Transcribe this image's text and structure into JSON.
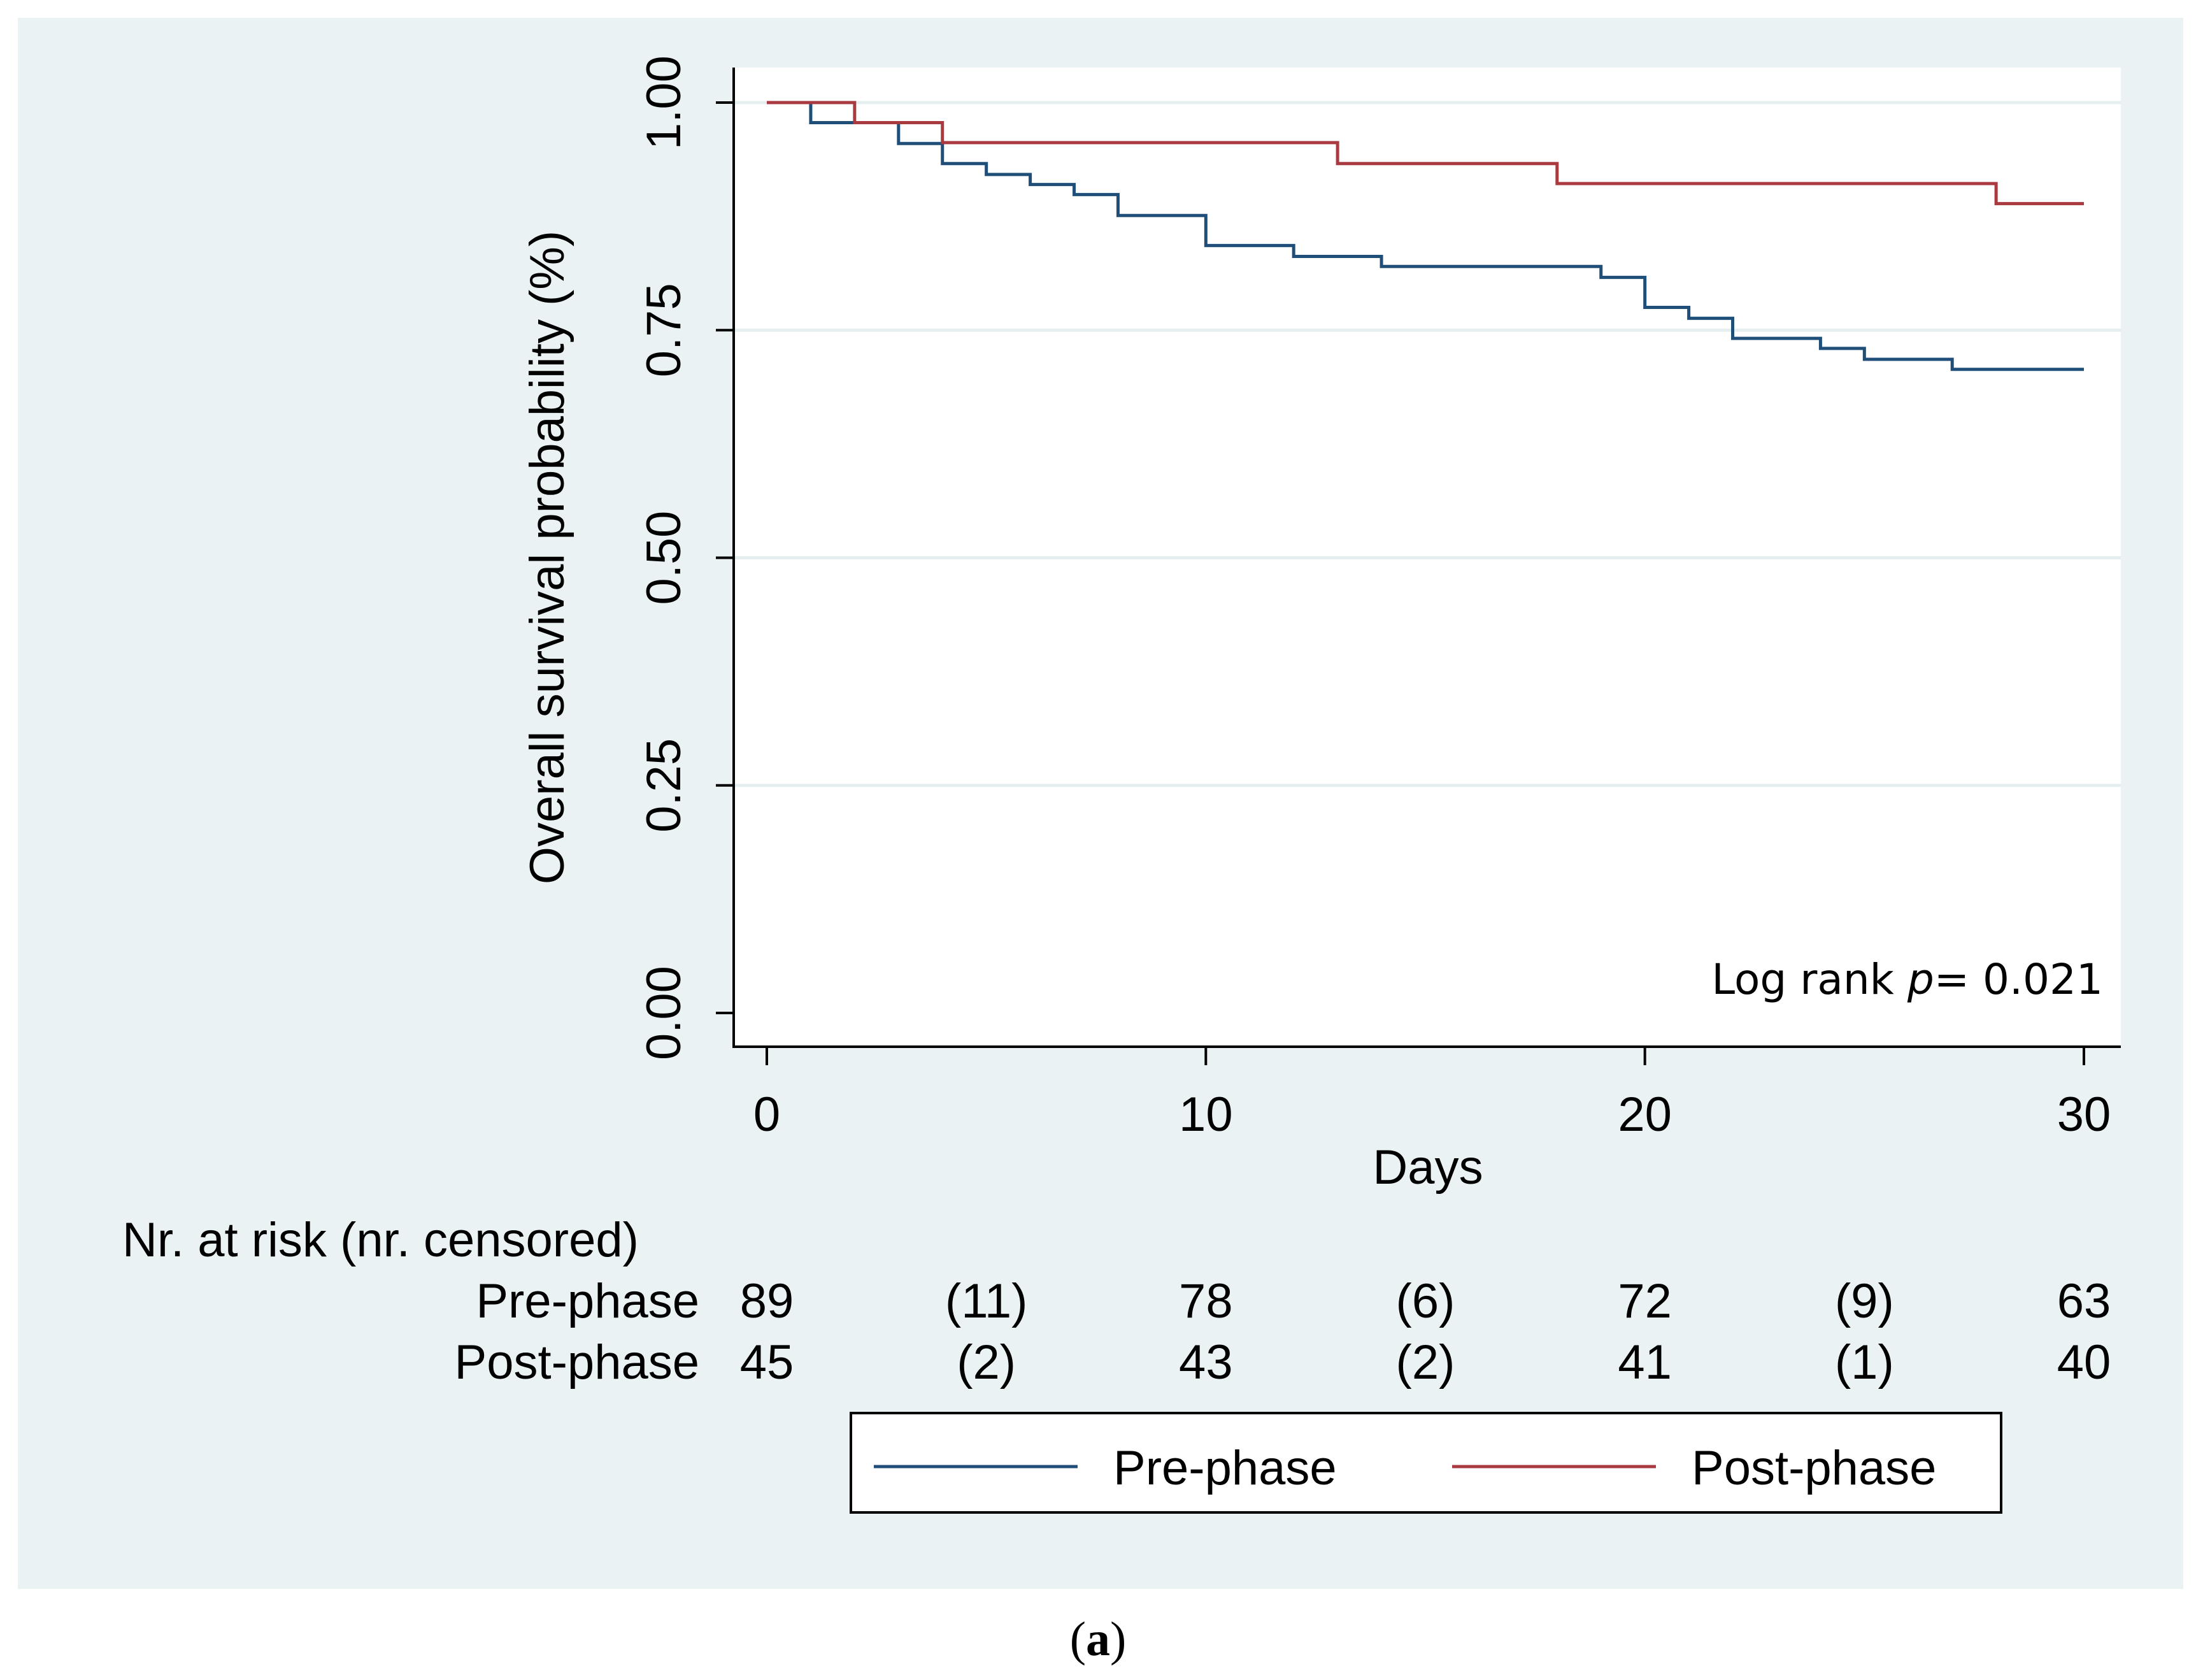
{
  "chart_data": {
    "type": "line",
    "step": true,
    "title": "",
    "xlabel": "Days",
    "ylabel": "Overall survival probability (%)",
    "xlim": [
      0,
      30
    ],
    "ylim": [
      0,
      1
    ],
    "xticks": [
      0,
      10,
      20,
      30
    ],
    "xtick_labels": [
      "0",
      "10",
      "20",
      "30"
    ],
    "yticks": [
      0,
      0.25,
      0.5,
      0.75,
      1
    ],
    "ytick_labels": [
      "0.00",
      "0.25",
      "0.50",
      "0.75",
      "1.00"
    ],
    "grid": true,
    "series": [
      {
        "name": "Pre-phase",
        "color": "#1f4e79",
        "x": [
          0,
          1,
          3,
          4,
          5,
          6,
          7,
          8,
          10,
          12,
          14,
          19,
          20,
          21,
          22,
          24,
          25,
          27,
          30
        ],
        "y": [
          1.0,
          0.978,
          0.955,
          0.933,
          0.921,
          0.91,
          0.899,
          0.876,
          0.843,
          0.831,
          0.82,
          0.808,
          0.775,
          0.763,
          0.741,
          0.73,
          0.718,
          0.707,
          0.707
        ]
      },
      {
        "name": "Post-phase",
        "color": "#a83a40",
        "x": [
          0,
          2,
          4,
          13,
          18,
          28,
          30
        ],
        "y": [
          1.0,
          0.978,
          0.956,
          0.933,
          0.911,
          0.889,
          0.889
        ]
      }
    ],
    "annotation": {
      "prefix": "Log rank ",
      "italic": "p",
      "suffix": "= 0.021"
    },
    "risk_table": {
      "header": "Nr. at risk (nr. censored)",
      "rows": [
        {
          "label": "Pre-phase",
          "cells": [
            {
              "x": 0,
              "text": "89"
            },
            {
              "x": 5,
              "text": "(11)"
            },
            {
              "x": 10,
              "text": "78"
            },
            {
              "x": 15,
              "text": "(6)"
            },
            {
              "x": 20,
              "text": "72"
            },
            {
              "x": 25,
              "text": "(9)"
            },
            {
              "x": 30,
              "text": "63"
            }
          ]
        },
        {
          "label": "Post-phase",
          "cells": [
            {
              "x": 0,
              "text": "45"
            },
            {
              "x": 5,
              "text": "(2)"
            },
            {
              "x": 10,
              "text": "43"
            },
            {
              "x": 15,
              "text": "(2)"
            },
            {
              "x": 20,
              "text": "41"
            },
            {
              "x": 25,
              "text": "(1)"
            },
            {
              "x": 30,
              "text": "40"
            }
          ]
        }
      ]
    },
    "legend_position": "bottom",
    "caption": {
      "open": "(",
      "letter": "a",
      "close": ")"
    }
  }
}
